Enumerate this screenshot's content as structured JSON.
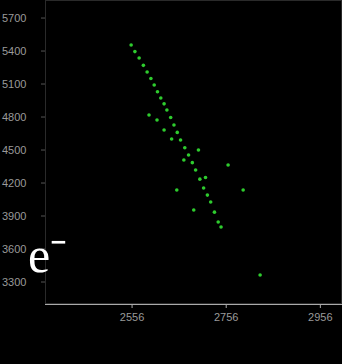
{
  "chart_data": {
    "type": "scatter",
    "annotation": "e⁻",
    "color": "#2ecc2e",
    "marker": "circle",
    "grid": false,
    "x": [
      2554,
      2562,
      2571,
      2580,
      2588,
      2596,
      2603,
      2610,
      2617,
      2624,
      2630,
      2638,
      2645,
      2652,
      2659,
      2668,
      2676,
      2684,
      2691,
      2700,
      2708,
      2716,
      2723,
      2731,
      2739,
      2745,
      2624,
      2666,
      2697,
      2760,
      2687,
      2651,
      2609,
      2792,
      2828,
      2592,
      2640,
      2712
    ],
    "values": [
      5455,
      5395,
      5336,
      5270,
      5209,
      5150,
      5091,
      5030,
      4973,
      4920,
      4864,
      4795,
      4727,
      4660,
      4591,
      4520,
      4455,
      4385,
      4318,
      4235,
      4155,
      4090,
      4027,
      3935,
      3845,
      3800,
      4682,
      4409,
      4500,
      4364,
      3955,
      4136,
      4773,
      4136,
      3364,
      4818,
      4600,
      4250
    ],
    "xlim": [
      2371,
      3002
    ],
    "ylim": [
      3100,
      5864
    ],
    "xticks": [
      2556,
      2756,
      2956
    ],
    "yticks": [
      3300,
      3600,
      3900,
      4200,
      4500,
      4800,
      5100,
      5400,
      5700
    ]
  }
}
